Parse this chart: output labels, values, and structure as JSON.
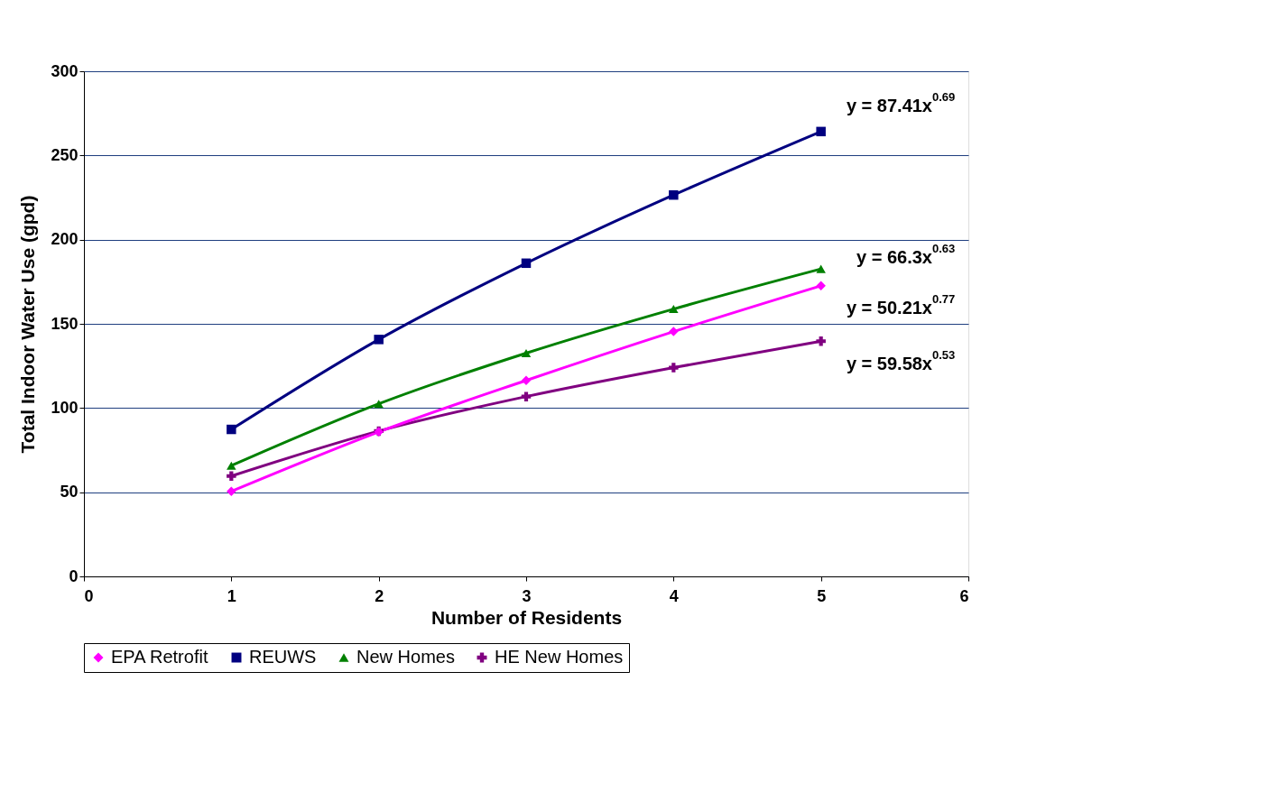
{
  "chart_data": {
    "type": "line",
    "xlabel": "Number of Residents",
    "ylabel": "Total Indoor Water Use (gpd)",
    "x": [
      1,
      2,
      3,
      4,
      5
    ],
    "series": [
      {
        "name": "EPA Retrofit",
        "type": "scatter",
        "color": "#ff00ff",
        "marker": "diamond",
        "values": [
          50.5,
          85.8,
          116.4,
          145.4,
          172.6
        ]
      },
      {
        "name": "REUWS",
        "type": "scatter",
        "color": "#000080",
        "marker": "square",
        "values": [
          87.3,
          140.7,
          186,
          226.5,
          264.2
        ]
      },
      {
        "name": "New Homes",
        "color": "#008000",
        "marker": "triangle",
        "values": [
          65.8,
          102.5,
          132.6,
          158.8,
          182.6
        ]
      },
      {
        "name": "HE New Homes",
        "color": "#800080",
        "marker": "cross",
        "values": [
          59.6,
          86.3,
          106.8,
          124,
          139.7
        ]
      },
      {
        "color": "#ff00ff",
        "values": [
          50.5,
          85.8,
          116.4,
          145.4,
          172.6
        ]
      },
      {
        "color": "#000080",
        "values": [
          87.3,
          140.7,
          186,
          226.5,
          264.2
        ]
      }
    ],
    "xlim": [
      0,
      6
    ],
    "xticks": [
      0,
      1,
      2,
      3,
      4,
      5,
      6
    ],
    "ylim": [
      0,
      300
    ],
    "yticks": [
      0,
      50,
      100,
      150,
      200,
      250,
      300
    ],
    "grid": "y",
    "legend": "bottom",
    "annotations": [
      "y = 87.41x$^{0.69}$",
      "y = 66.3x$^{0.63}$",
      "y = 50.21x$^{0.77}$",
      "y = 59.58x$^{0.53}$"
    ]
  }
}
